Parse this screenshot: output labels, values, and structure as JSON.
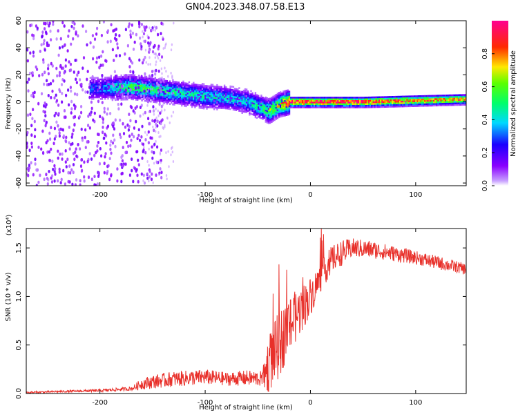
{
  "title": "GN04.2023.348.07.58.E13",
  "colors": {
    "snr_line": "#e8302a",
    "spectro_background": "#ffffff"
  },
  "chart_data": [
    {
      "type": "heatmap",
      "xlabel": "Height of straight line (km)",
      "ylabel": "Frequency (Hz)",
      "xlim": [
        -270,
        148
      ],
      "ylim": [
        -62,
        60
      ],
      "xticks": [
        -200,
        -100,
        0,
        100
      ],
      "yticks": [
        -60,
        -40,
        -20,
        0,
        20,
        40,
        60
      ],
      "colormap": "rainbow (violet → blue → cyan → green → yellow → red → magenta)",
      "colorbar": {
        "label": "Normalized spectral amplitude",
        "range": [
          0,
          1
        ],
        "ticks": [
          "0.0",
          "0.2",
          "0.4",
          "0.6",
          "0.8"
        ]
      },
      "ridge": {
        "x": [
          -200,
          -170,
          -150,
          -120,
          -100,
          -80,
          -60,
          -45,
          -40,
          -30,
          -20,
          -10,
          0,
          50,
          100,
          148
        ],
        "center_freq_hz": [
          10,
          11,
          9,
          6,
          4,
          3,
          0,
          -5,
          -7,
          -2,
          0,
          0,
          0,
          0,
          1,
          2
        ],
        "peak_amplitude": [
          0.3,
          0.55,
          0.5,
          0.45,
          0.42,
          0.4,
          0.4,
          0.5,
          0.6,
          0.65,
          0.9,
          0.95,
          0.9,
          0.88,
          0.8,
          0.75
        ]
      },
      "noise_region": {
        "x_start": -270,
        "x_end": -160,
        "level": 0.1
      }
    },
    {
      "type": "line",
      "xlabel": "Height of straight line (km)",
      "ylabel": "SNR (10 * v/v)",
      "y_multiplier": "(x10⁴)",
      "xlim": [
        -270,
        148
      ],
      "ylim": [
        0,
        1.7
      ],
      "xticks": [
        -200,
        -100,
        0,
        100
      ],
      "yticks": [
        "0.0",
        "0.5",
        "1.0",
        "1.5"
      ],
      "series": [
        {
          "x": [
            -270,
            -240,
            -200,
            -170,
            -160,
            -150,
            -130,
            -100,
            -80,
            -60,
            -45,
            -40,
            -30,
            -20,
            -10,
            0,
            10,
            20,
            30,
            40,
            60,
            80,
            100,
            120,
            148
          ],
          "y": [
            0.01,
            0.02,
            0.03,
            0.05,
            0.1,
            0.12,
            0.15,
            0.17,
            0.15,
            0.16,
            0.15,
            0.3,
            0.5,
            0.7,
            0.85,
            1.0,
            1.2,
            1.38,
            1.45,
            1.5,
            1.48,
            1.44,
            1.4,
            1.35,
            1.28
          ],
          "noise_amplitude": [
            0.01,
            0.01,
            0.015,
            0.02,
            0.06,
            0.07,
            0.08,
            0.08,
            0.07,
            0.08,
            0.08,
            0.3,
            0.35,
            0.3,
            0.25,
            0.2,
            0.15,
            0.14,
            0.13,
            0.1,
            0.09,
            0.08,
            0.07,
            0.07,
            0.06
          ]
        }
      ]
    }
  ]
}
